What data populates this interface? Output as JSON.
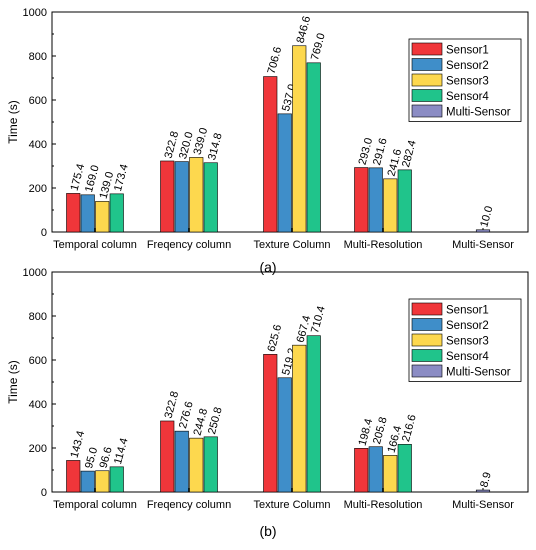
{
  "colors": {
    "Sensor1": "#f0363a",
    "Sensor2": "#3f8ec9",
    "Sensor3": "#fdd84e",
    "Sensor4": "#20c48b",
    "Multi-Sensor": "#8b8cc4"
  },
  "chart_data": [
    {
      "type": "bar",
      "panel_label": "(a)",
      "ylabel": "Time (s)",
      "ylim": [
        0,
        1000
      ],
      "yticks": [
        "0",
        "200",
        "400",
        "600",
        "800",
        "1000"
      ],
      "categories": [
        "Temporal column",
        "Freqency column",
        "Texture Column",
        "Multi-Resolution",
        "Multi-Sensor"
      ],
      "legend_position": "top-right",
      "series": [
        {
          "name": "Sensor1",
          "values": [
            175.4,
            322.8,
            706.6,
            293.0,
            null
          ],
          "labels": [
            "175.4",
            "322.8",
            "706.6",
            "293.0",
            null
          ]
        },
        {
          "name": "Sensor2",
          "values": [
            169.0,
            320.0,
            537.0,
            291.6,
            null
          ],
          "labels": [
            "169.0",
            "320.0",
            "537.0",
            "291.6",
            null
          ]
        },
        {
          "name": "Sensor3",
          "values": [
            139.0,
            339.0,
            846.6,
            241.6,
            null
          ],
          "labels": [
            "139.0",
            "339.0",
            "846.6",
            "241.6",
            null
          ]
        },
        {
          "name": "Sensor4",
          "values": [
            173.4,
            314.8,
            769.0,
            282.4,
            null
          ],
          "labels": [
            "173.4",
            "314.8",
            "769.0",
            "282.4",
            null
          ]
        },
        {
          "name": "Multi-Sensor",
          "values": [
            null,
            null,
            null,
            null,
            10.0
          ],
          "labels": [
            null,
            null,
            null,
            null,
            "10.0"
          ]
        }
      ]
    },
    {
      "type": "bar",
      "panel_label": "(b)",
      "ylabel": "Time (s)",
      "ylim": [
        0,
        1000
      ],
      "yticks": [
        "0",
        "200",
        "400",
        "600",
        "800",
        "1000"
      ],
      "categories": [
        "Temporal column",
        "Freqency column",
        "Texture Column",
        "Multi-Resolution",
        "Multi-Sensor"
      ],
      "legend_position": "top-right",
      "series": [
        {
          "name": "Sensor1",
          "values": [
            143.4,
            322.8,
            625.6,
            198.4,
            null
          ],
          "labels": [
            "143.4",
            "322.8",
            "625.6",
            "198.4",
            null
          ]
        },
        {
          "name": "Sensor2",
          "values": [
            95.0,
            276.6,
            519.2,
            205.8,
            null
          ],
          "labels": [
            "95.0",
            "276.6",
            "519.2",
            "205.8",
            null
          ]
        },
        {
          "name": "Sensor3",
          "values": [
            96.6,
            244.8,
            667.4,
            166.4,
            null
          ],
          "labels": [
            "96.6",
            "244.8",
            "667.4",
            "166.4",
            null
          ]
        },
        {
          "name": "Sensor4",
          "values": [
            114.4,
            250.8,
            710.4,
            216.6,
            null
          ],
          "labels": [
            "114.4",
            "250.8",
            "710.4",
            "216.6",
            null
          ]
        },
        {
          "name": "Multi-Sensor",
          "values": [
            null,
            null,
            null,
            null,
            8.9
          ],
          "labels": [
            null,
            null,
            null,
            null,
            "8.9"
          ]
        }
      ]
    }
  ]
}
